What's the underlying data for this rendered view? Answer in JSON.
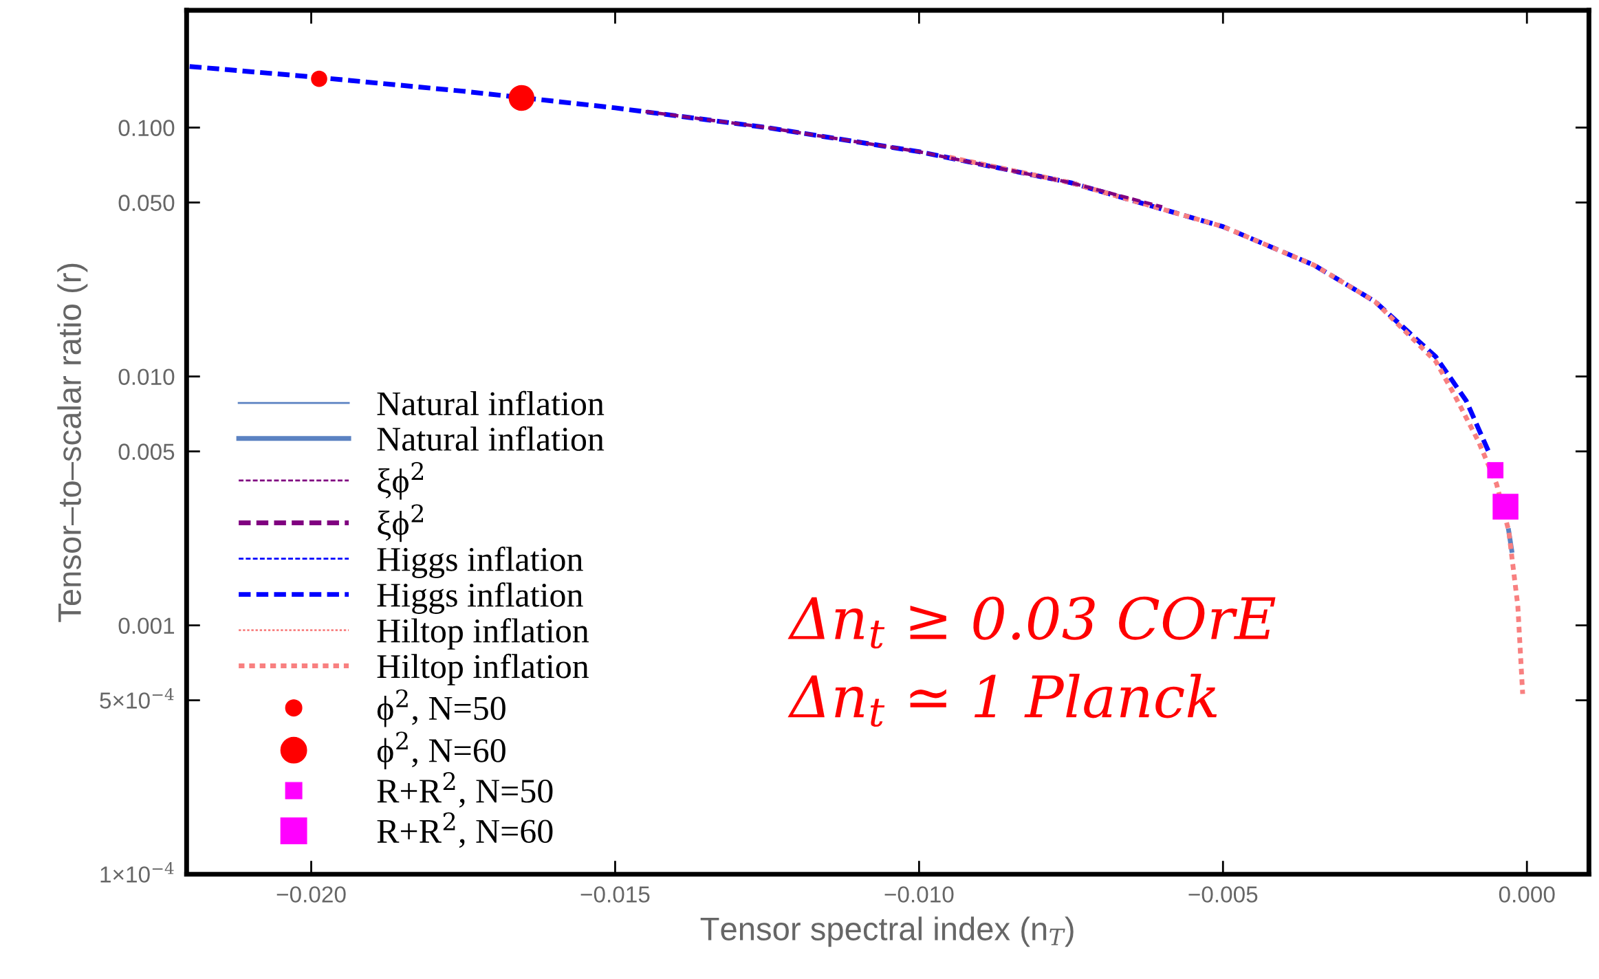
{
  "chart_data": {
    "type": "line",
    "xlabel": "Tensor spectral index (n$_{T}$)",
    "ylabel": "Tensor–to–scalar ratio (r)",
    "log": "y",
    "xlim": [
      -0.02205,
      0.00102
    ],
    "ylim": [
      0.0001,
      0.296
    ],
    "xticks": [
      {
        "value": -0.02,
        "label": "−0.020"
      },
      {
        "value": -0.015,
        "label": "−0.015"
      },
      {
        "value": -0.01,
        "label": "−0.010"
      },
      {
        "value": -0.005,
        "label": "−0.005"
      },
      {
        "value": 0,
        "label": "0.000"
      }
    ],
    "yticks": [
      {
        "value": 0.0001,
        "label": "1×10$^{−4}$"
      },
      {
        "value": 0.0005,
        "label": "5×10$^{−4}$"
      },
      {
        "value": 0.001,
        "label": "0.001"
      },
      {
        "value": 0.005,
        "label": "0.005"
      },
      {
        "value": 0.01,
        "label": "0.010"
      },
      {
        "value": 0.05,
        "label": "0.050"
      },
      {
        "value": 0.1,
        "label": "0.100"
      }
    ],
    "grid": false,
    "legend": "lower left",
    "series": [
      {
        "name": "Natural inflation",
        "line_style": "solid",
        "color": "#5b82c2"
      },
      {
        "name": "Natural inflation",
        "line_style": "solid",
        "color": "#5b82c2",
        "x": [
          -0.0003,
          -0.00025
        ],
        "values": [
          0.0024,
          0.002
        ]
      },
      {
        "name": "ξϕ$^{2}$",
        "line_style": "dashed",
        "color": "#800080"
      },
      {
        "name": "ξϕ$^{2}$",
        "line_style": "dashed",
        "color": "#800080",
        "x": [
          -0.0145,
          -0.0125,
          -0.01,
          -0.0075,
          -0.006
        ],
        "values": [
          0.116,
          0.1,
          0.08,
          0.06,
          0.048
        ]
      },
      {
        "name": "Higgs inflation",
        "line_style": "dashed",
        "color": "#0000ff"
      },
      {
        "name": "Higgs inflation",
        "line_style": "dashed",
        "color": "#0000ff",
        "x": [
          -0.022,
          -0.02,
          -0.0175,
          -0.015,
          -0.0125,
          -0.01,
          -0.0075,
          -0.005,
          -0.0035,
          -0.0025,
          -0.0015,
          -0.001,
          -0.0006
        ],
        "values": [
          0.176,
          0.16,
          0.14,
          0.12,
          0.1,
          0.08,
          0.06,
          0.04,
          0.028,
          0.02,
          0.012,
          0.008,
          0.0048
        ]
      },
      {
        "name": "Hiltop inflation",
        "line_style": "dotted",
        "color": "#f88080"
      },
      {
        "name": "Hiltop inflation",
        "line_style": "dotted",
        "color": "#f88080",
        "x": [
          -0.0095,
          -0.0075,
          -0.005,
          -0.0035,
          -0.0025,
          -0.0015,
          -0.0012,
          -0.0008,
          -0.0005,
          -0.0003,
          -0.00015,
          -7e-05
        ],
        "values": [
          0.076,
          0.06,
          0.04,
          0.028,
          0.02,
          0.0115,
          0.0085,
          0.0055,
          0.0037,
          0.0024,
          0.0012,
          0.00053
        ]
      },
      {
        "name": "ϕ$^{2}$, N=50",
        "type": "scatter",
        "marker": "circle",
        "color": "#ff0000",
        "x": [
          -0.01987
        ],
        "values": [
          0.157
        ]
      },
      {
        "name": "ϕ$^{2}$, N=60",
        "type": "scatter",
        "marker": "circle",
        "color": "#ff0000",
        "x": [
          -0.01654
        ],
        "values": [
          0.1316
        ]
      },
      {
        "name": "R+R$^{2}$, N=50",
        "type": "scatter",
        "marker": "square",
        "color": "#ff00ff",
        "x": [
          -0.00052
        ],
        "values": [
          0.0042
        ]
      },
      {
        "name": "R+R$^{2}$, N=60",
        "type": "scatter",
        "marker": "square",
        "color": "#ff00ff",
        "x": [
          -0.000352
        ],
        "values": [
          0.003
        ]
      }
    ],
    "annotations": [
      "Δn$_{t}$ ≥ 0.03 COrE",
      "Δn$_{t}$ ≃ 1 Planck"
    ]
  }
}
